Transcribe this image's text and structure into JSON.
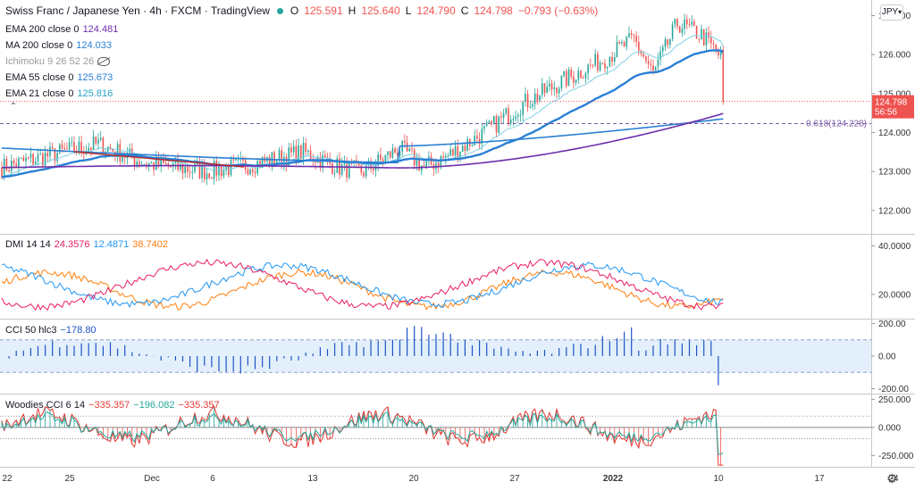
{
  "header": {
    "title": "Swiss Franc / Japanese Yen · 4h · FXCM · TradingView",
    "o_label": "O",
    "open": "125.591",
    "h_label": "H",
    "high": "125.640",
    "l_label": "L",
    "low": "124.790",
    "c_label": "C",
    "close": "124.798",
    "change": "−0.793 (−0.63%)"
  },
  "currency_button": "JPY",
  "indicators": [
    {
      "label": "EMA 200 close 0",
      "value": "124.481",
      "color": "#6d2fab"
    },
    {
      "label": "MA 200 close 0",
      "value": "124.033",
      "color": "#2a7fd4"
    },
    {
      "label": "Ichimoku 9 26 52 26",
      "value": "",
      "color": "#9a9aa0"
    },
    {
      "label": "EMA 55 close 0",
      "value": "125.673",
      "color": "#2a7fd4"
    },
    {
      "label": "EMA 21 close 0",
      "value": "125.816",
      "color": "#26a2c9"
    }
  ],
  "dmi": {
    "label": "DMI 14 14",
    "v1": "24.3576",
    "v2": "12.4871",
    "v3": "38.7402",
    "c1": "#e91e63",
    "c2": "#2196f3",
    "c3": "#ff7f0e"
  },
  "cci": {
    "label": "CCI 50 hlc3",
    "v": "−178.80",
    "color": "#1e53c6"
  },
  "woodies": {
    "label": "Woodies CCI 6 14",
    "v1": "−335.357",
    "v2": "−196.082",
    "v3": "−335.357",
    "c1": "#e53935",
    "c2": "#26a69a",
    "c3": "#e53935"
  },
  "chart_data": {
    "type": "candlestick",
    "price_axis": [
      "127.000",
      "126.000",
      "125.000",
      "124.000",
      "123.000",
      "122.000"
    ],
    "ylim": [
      121.4,
      127.4
    ],
    "last_price": "124.798",
    "countdown": "56:56",
    "fib_label": "0.618(124.228)",
    "fib_level": 124.228,
    "dmi_axis": [
      "40.0000",
      "20.0000"
    ],
    "dmi_ylim": [
      10,
      45
    ],
    "cci_axis": [
      "200.00",
      "0.00",
      "-200.00"
    ],
    "cci_ylim": [
      -230,
      230
    ],
    "cci_bands": [
      100,
      -100
    ],
    "wcci_axis": [
      "250.000",
      "0.000",
      "-250.000"
    ],
    "wcci_ylim": [
      -350,
      300
    ],
    "x_labels": [
      "22",
      "25",
      "Dec",
      "6",
      "13",
      "20",
      "27",
      "2022",
      "10",
      "17",
      "24"
    ],
    "colors": {
      "up": "#26a69a",
      "down": "#ef5350",
      "ema200": "#6d2fab",
      "ma200": "#2a7fd4",
      "ema55": "#2a7fd4",
      "ema21": "#7fcfe3",
      "trend": "#b22a2a"
    }
  }
}
